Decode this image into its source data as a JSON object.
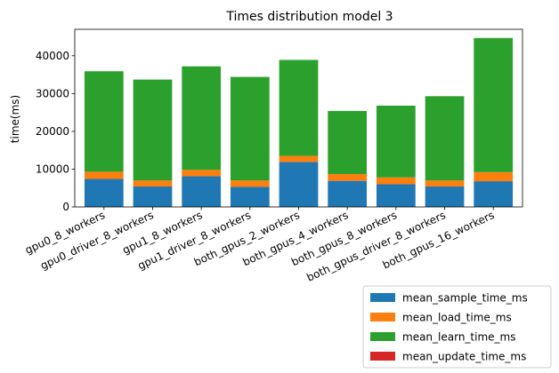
{
  "chart_data": {
    "type": "bar",
    "stacked": true,
    "title": "Times distribution model 3",
    "xlabel": "",
    "ylabel": "time(ms)",
    "ylim": [
      0,
      47000
    ],
    "yticks": [
      0,
      10000,
      20000,
      30000,
      40000
    ],
    "ytick_labels": [
      "0",
      "10000",
      "20000",
      "30000",
      "40000"
    ],
    "grid": false,
    "legend_position": "below-right",
    "categories": [
      "gpu0_8_workers",
      "gpu0_driver_8_workers",
      "gpu1_8_workers",
      "gpu1_driver_8_workers",
      "both_gpus_2_workers",
      "both_gpus_4_workers",
      "both_gpus_8_workers",
      "both_gpus_driver_8_workers",
      "both_gpus_16_workers"
    ],
    "series": [
      {
        "name": "mean_sample_time_ms",
        "color": "#1f77b4",
        "values": [
          7400,
          5400,
          8100,
          5300,
          11900,
          6900,
          6000,
          5400,
          6800
        ]
      },
      {
        "name": "mean_load_time_ms",
        "color": "#ff7f0e",
        "values": [
          1900,
          1600,
          1700,
          1700,
          1600,
          1800,
          1800,
          1600,
          2400
        ]
      },
      {
        "name": "mean_learn_time_ms",
        "color": "#2ca02c",
        "values": [
          26600,
          26700,
          27400,
          27400,
          25400,
          16700,
          19000,
          22300,
          35500
        ]
      },
      {
        "name": "mean_update_time_ms",
        "color": "#d62728",
        "values": [
          0,
          0,
          0,
          0,
          0,
          0,
          0,
          0,
          0
        ]
      }
    ]
  }
}
